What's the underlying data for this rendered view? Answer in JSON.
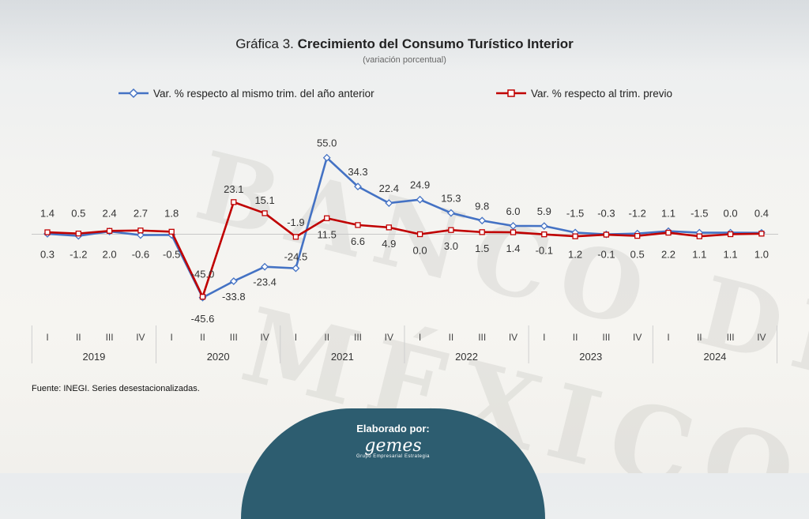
{
  "header": {
    "title_prefix": "Gráfica 3.",
    "title_main": "Crecimiento del Consumo Turístico Interior",
    "subtitle": "(variación porcentual)"
  },
  "source_note": "Fuente: INEGI. Series desestacionalizadas.",
  "footer": {
    "made_by": "Elaborado por:",
    "logo_text": "gemes",
    "logo_sub": "Grupo Empresarial Estrategia"
  },
  "colors": {
    "blue_series": "#4472c4",
    "red_series": "#c00000",
    "badge": "#2d5d70"
  },
  "chart_data": {
    "type": "line",
    "x_quarters": [
      "I",
      "II",
      "III",
      "IV",
      "I",
      "II",
      "III",
      "IV",
      "I",
      "II",
      "III",
      "IV",
      "I",
      "II",
      "III",
      "IV",
      "I",
      "II",
      "III",
      "IV",
      "I",
      "II",
      "III",
      "IV"
    ],
    "x_years": [
      "2019",
      "2020",
      "2021",
      "2022",
      "2023",
      "2024"
    ],
    "series": [
      {
        "name": "Var. % respecto al mismo trim. del año anterior",
        "color": "#4472c4",
        "marker": "diamond",
        "values": [
          0.3,
          -1.2,
          2.0,
          -0.6,
          -0.5,
          -45.6,
          -33.8,
          -23.4,
          -24.5,
          55.0,
          34.3,
          22.4,
          24.9,
          15.3,
          9.8,
          6.0,
          5.9,
          1.2,
          -0.1,
          0.5,
          2.2,
          1.1,
          1.1,
          1.0
        ]
      },
      {
        "name": "Var. % respecto al trim. previo",
        "color": "#c00000",
        "marker": "square",
        "values": [
          1.4,
          0.5,
          2.4,
          2.7,
          1.8,
          -45.0,
          23.1,
          15.1,
          -1.9,
          11.5,
          6.6,
          4.9,
          0.0,
          3.0,
          1.5,
          1.4,
          -0.1,
          -1.5,
          -0.3,
          -1.2,
          1.1,
          -1.5,
          0.0,
          0.4
        ]
      }
    ],
    "axis_baseline": 0,
    "grid": false,
    "legend_position": "top"
  }
}
